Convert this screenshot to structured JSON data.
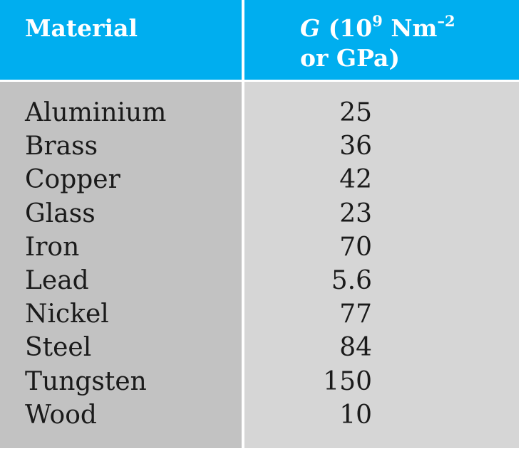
{
  "table": {
    "header_material": "Material",
    "header_g_symbol": "G",
    "header_g_open": "(10",
    "header_g_exp": "9",
    "header_g_unit": " Nm",
    "header_g_unit_exp": "–2",
    "header_g_line2": "or GPa)",
    "rows": [
      {
        "material": "Aluminium",
        "g": "25"
      },
      {
        "material": "Brass",
        "g": "36"
      },
      {
        "material": "Copper",
        "g": "42"
      },
      {
        "material": "Glass",
        "g": "23"
      },
      {
        "material": "Iron",
        "g": "70"
      },
      {
        "material": "Lead",
        "g": "5.6"
      },
      {
        "material": "Nickel",
        "g": "77"
      },
      {
        "material": "Steel",
        "g": "84"
      },
      {
        "material": "Tungsten",
        "g": "150"
      },
      {
        "material": "Wood",
        "g": "10"
      }
    ]
  },
  "colors": {
    "header_bg": "#00aeef",
    "col1_bg": "#c2c2c2",
    "col2_bg": "#d6d6d6"
  }
}
